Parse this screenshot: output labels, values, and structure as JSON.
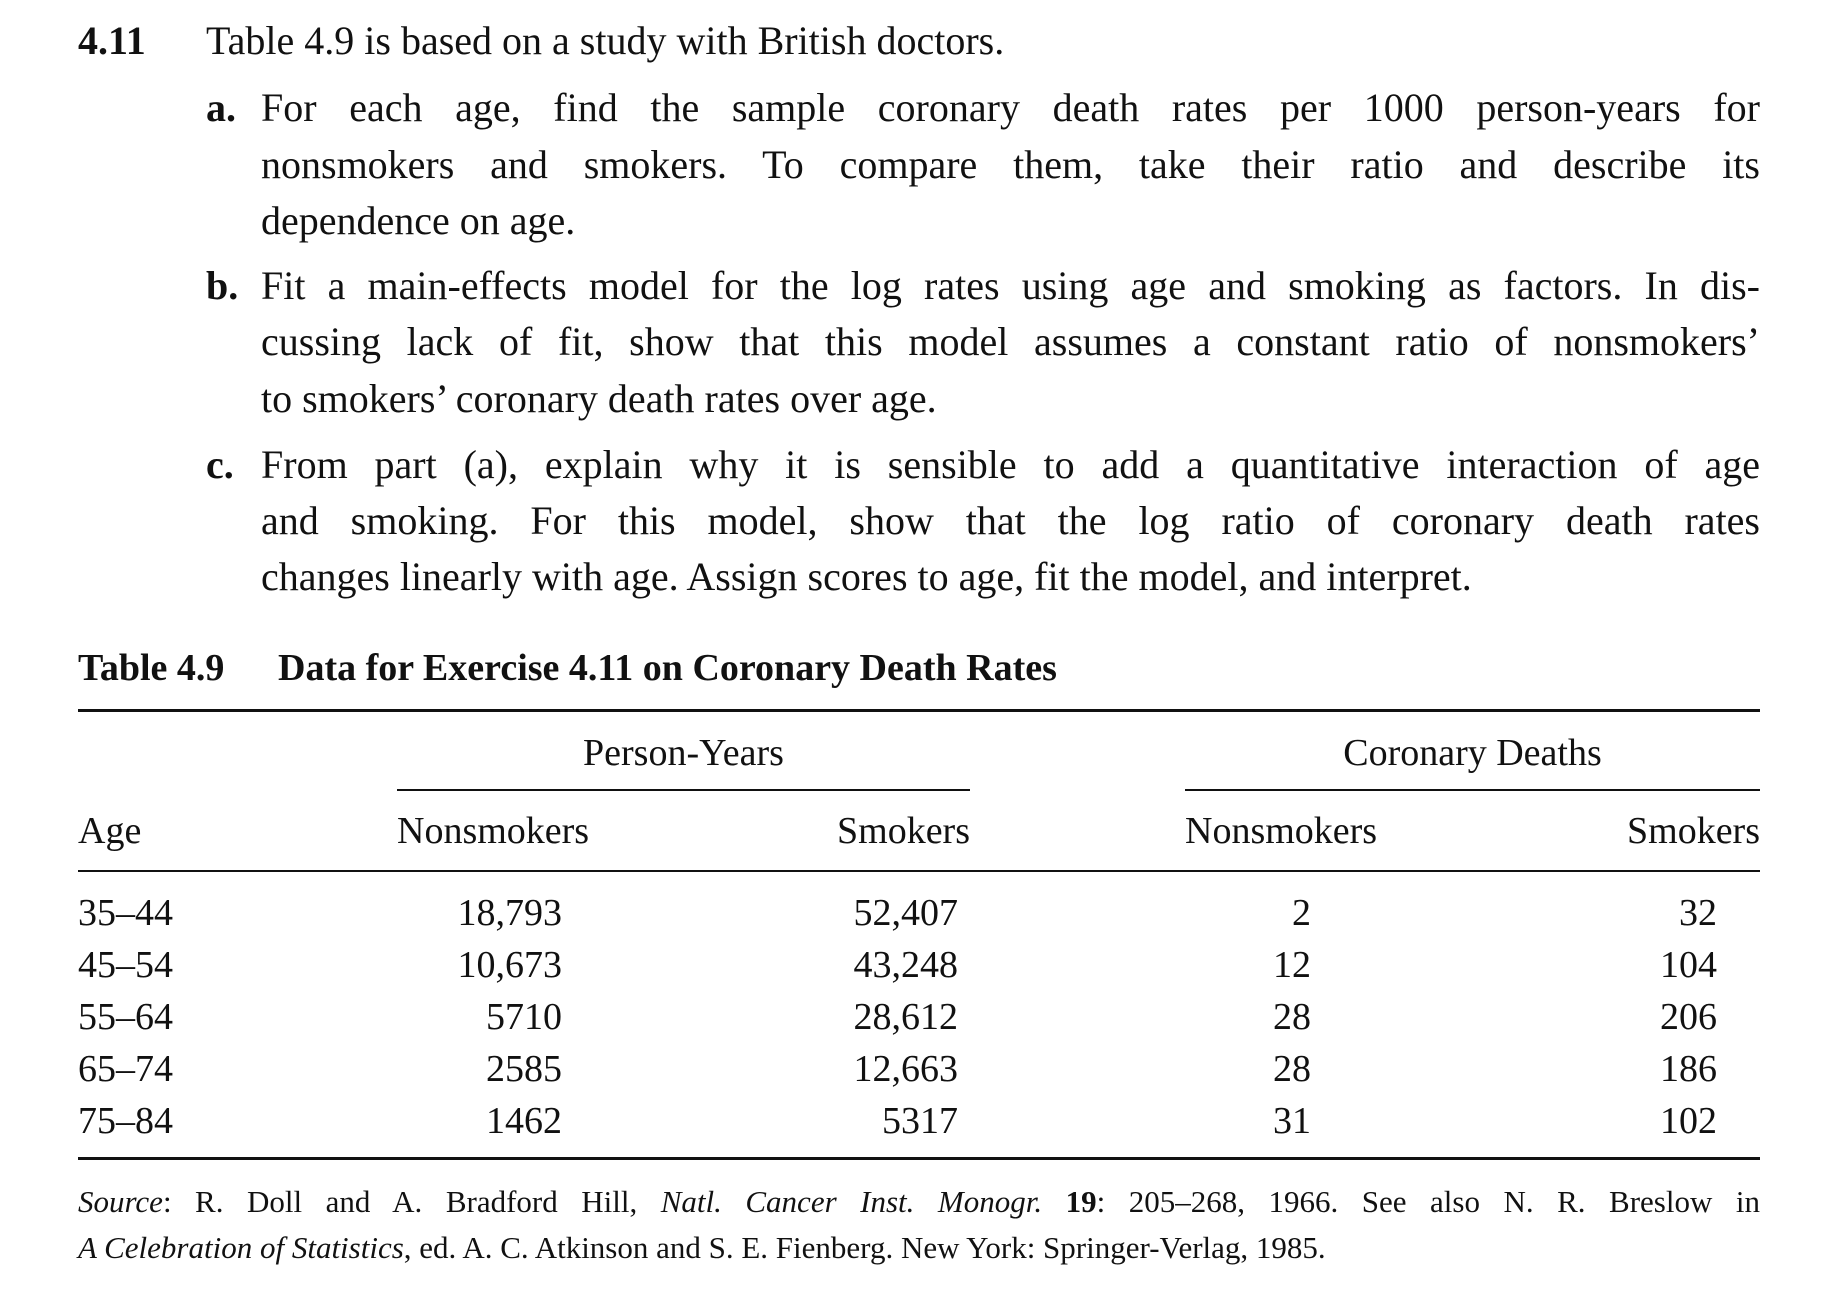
{
  "exercise": {
    "number": "4.11",
    "intro": "Table 4.9 is based on a study with British doctors.",
    "parts": [
      {
        "label": "a.",
        "lines": [
          "For each age, find the sample coronary death rates per 1000 person-years for",
          "nonsmokers and smokers. To compare them, take their ratio and describe its",
          "dependence on age."
        ]
      },
      {
        "label": "b.",
        "lines": [
          "Fit a main-effects model for the log rates using age and smoking as factors. In dis-",
          "cussing lack of fit, show that this model assumes a constant ratio of nonsmokers’",
          "to smokers’ coronary death rates over age."
        ]
      },
      {
        "label": "c.",
        "lines": [
          "From part (a), explain why it is sensible to add a quantitative interaction of age",
          "and smoking. For this model, show that the log ratio of coronary death rates",
          "changes linearly with age. Assign scores to age, fit the model, and interpret."
        ]
      }
    ]
  },
  "table": {
    "caption_label": "Table 4.9",
    "caption_title": "Data for Exercise 4.11 on Coronary Death Rates",
    "group_headers": [
      "Person-Years",
      "Coronary Deaths"
    ],
    "columns": [
      "Age",
      "Nonsmokers",
      "Smokers",
      "Nonsmokers",
      "Smokers"
    ],
    "rows": [
      [
        "35–44",
        "18,793",
        "52,407",
        "2",
        "32"
      ],
      [
        "45–54",
        "10,673",
        "43,248",
        "12",
        "104"
      ],
      [
        "55–64",
        "5710",
        "28,612",
        "28",
        "206"
      ],
      [
        "65–74",
        "2585",
        "12,663",
        "28",
        "186"
      ],
      [
        "75–84",
        "1462",
        "5317",
        "31",
        "102"
      ]
    ],
    "source": {
      "s1": "Source",
      "s2": ": R. Doll and A. Bradford Hill, ",
      "s3": "Natl. Cancer Inst. Monogr.",
      "s4": " 19",
      "s5": ": 205–268, 1966. See also N. R. Breslow in",
      "s6": "A Celebration of Statistics",
      "s7": ", ed. A. C. Atkinson and S. E. Fienberg. New York: Springer-Verlag, 1985."
    }
  }
}
